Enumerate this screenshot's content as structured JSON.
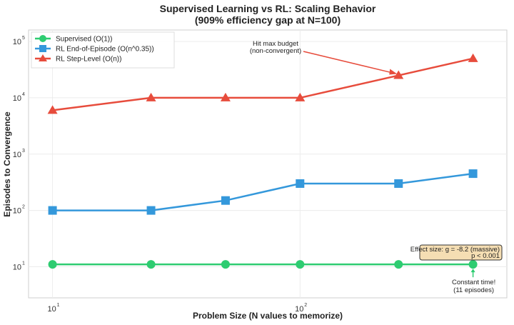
{
  "chart_data": {
    "type": "line",
    "title": "Supervised Learning vs RL: Scaling Behavior",
    "subtitle": "(909% efficiency gap at N=100)",
    "xlabel": "Problem Size (N values to memorize)",
    "ylabel": "Episodes to Convergence",
    "xscale": "log",
    "yscale": "log",
    "xlim": [
      8,
      685
    ],
    "ylim": [
      2.8,
      160000
    ],
    "grid": true,
    "legend_position": "top-left",
    "x": [
      10,
      25,
      50,
      100,
      250,
      500
    ],
    "x_ticks": [
      {
        "value": 10,
        "base": "10",
        "exp": "1"
      },
      {
        "value": 100,
        "base": "10",
        "exp": "2"
      }
    ],
    "y_ticks": [
      {
        "value": 10,
        "base": "10",
        "exp": "1"
      },
      {
        "value": 100,
        "base": "10",
        "exp": "2"
      },
      {
        "value": 1000,
        "base": "10",
        "exp": "3"
      },
      {
        "value": 10000,
        "base": "10",
        "exp": "4"
      },
      {
        "value": 100000,
        "base": "10",
        "exp": "5"
      }
    ],
    "series": [
      {
        "name": "Supervised (O(1))",
        "color": "#2ecc71",
        "marker": "circle",
        "values": [
          11,
          11,
          11,
          11,
          11,
          11
        ]
      },
      {
        "name": "RL End-of-Episode (O(n^0.35))",
        "color": "#3498db",
        "marker": "square",
        "values": [
          100,
          100,
          150,
          300,
          300,
          450
        ]
      },
      {
        "name": "RL Step-Level (O(n))",
        "color": "#e74c3c",
        "marker": "triangle",
        "values": [
          6000,
          10000,
          10000,
          10000,
          25000,
          50000
        ]
      }
    ],
    "annotations": [
      {
        "id": "max-budget",
        "lines": [
          "Hit max budget",
          "(non-convergent)"
        ],
        "target": {
          "x": 250,
          "y": 25000
        },
        "color": "#e74c3c"
      },
      {
        "id": "constant-time",
        "lines": [
          "Constant time!",
          "(11 episodes)"
        ],
        "target": {
          "x": 500,
          "y": 11
        },
        "color": "#2ecc71"
      },
      {
        "id": "effect-size",
        "lines": [
          "Effect size: g = -8.2 (massive)",
          "p < 0.001"
        ],
        "box_fill": "#f5deb3",
        "box_stroke": "#333333"
      }
    ]
  }
}
